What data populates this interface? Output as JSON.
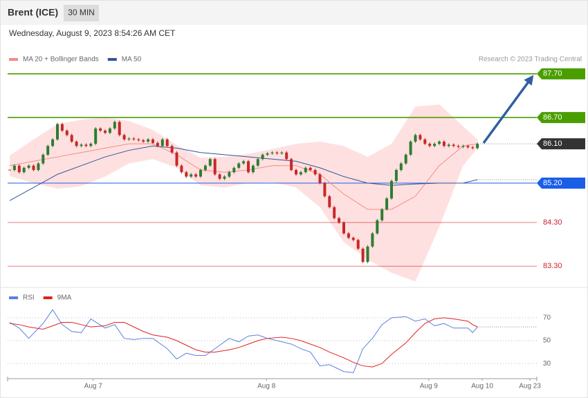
{
  "header": {
    "title": "Brent (ICE)",
    "interval": "30 MIN",
    "timestamp": "Wednesday, August 9, 2023 8:54:26 AM CET"
  },
  "chart_data": [
    {
      "type": "candlestick",
      "source": "Research © 2023 Trading Central",
      "xlim": [
        0,
        110
      ],
      "ylim": [
        82.83,
        88.44
      ],
      "up_color": "#2e7d32",
      "down_color": "#c62828",
      "closes": [
        85.5,
        85.6,
        85.45,
        85.55,
        85.6,
        85.5,
        85.65,
        85.85,
        86.05,
        86.2,
        86.55,
        86.4,
        86.3,
        86.15,
        86.05,
        86.08,
        86.05,
        86.1,
        86.45,
        86.4,
        86.35,
        86.45,
        86.6,
        86.3,
        86.2,
        86.22,
        86.2,
        86.18,
        86.15,
        86.2,
        86.12,
        86.05,
        86.2,
        86.05,
        85.9,
        85.6,
        85.45,
        85.35,
        85.4,
        85.35,
        85.5,
        85.6,
        85.75,
        85.4,
        85.3,
        85.35,
        85.45,
        85.55,
        85.65,
        85.7,
        85.45,
        85.6,
        85.75,
        85.85,
        85.88,
        85.9,
        85.88,
        85.9,
        85.75,
        85.5,
        85.4,
        85.45,
        85.55,
        85.5,
        85.4,
        85.2,
        84.9,
        84.65,
        84.4,
        84.3,
        84.05,
        83.95,
        83.9,
        83.7,
        83.4,
        83.75,
        84.05,
        84.35,
        84.6,
        84.85,
        85.25,
        85.5,
        85.65,
        85.85,
        86.15,
        86.3,
        86.2,
        86.1,
        86.05,
        86.1,
        86.15,
        86.05,
        86.08,
        86.05,
        86.03,
        86.05,
        86.02,
        86.0,
        86.1
      ],
      "series": [
        {
          "name": "MA 20 + Bollinger Bands",
          "color": "#f28b82",
          "band_color": "#ffd6d6",
          "x": [
            0,
            5,
            10,
            15,
            20,
            25,
            30,
            35,
            40,
            45,
            50,
            55,
            60,
            65,
            70,
            75,
            80,
            85,
            90,
            95,
            98
          ],
          "values": [
            85.6,
            85.7,
            85.8,
            85.9,
            86.0,
            86.1,
            86.1,
            85.85,
            85.5,
            85.45,
            85.5,
            85.6,
            85.6,
            85.4,
            84.95,
            84.6,
            84.6,
            84.9,
            85.6,
            86.05,
            86.1
          ],
          "upper": [
            85.83,
            86.2,
            86.55,
            86.65,
            86.7,
            86.62,
            86.42,
            86.07,
            85.78,
            85.8,
            85.87,
            85.98,
            86.1,
            86.15,
            86.05,
            85.8,
            86.1,
            86.95,
            87.0,
            86.5,
            86.2
          ],
          "lower": [
            85.36,
            85.2,
            85.07,
            85.13,
            85.35,
            85.65,
            85.75,
            85.55,
            85.15,
            85.1,
            85.2,
            85.22,
            85.1,
            84.65,
            83.85,
            83.45,
            83.15,
            82.95,
            84.2,
            85.6,
            86.0
          ]
        },
        {
          "name": "MA 50",
          "color": "#2f5597",
          "x": [
            0,
            5,
            10,
            15,
            20,
            25,
            30,
            35,
            40,
            45,
            50,
            55,
            60,
            65,
            70,
            75,
            80,
            85,
            90,
            95,
            98
          ],
          "values": [
            84.8,
            85.1,
            85.4,
            85.6,
            85.8,
            85.95,
            86.05,
            86.0,
            85.9,
            85.85,
            85.8,
            85.75,
            85.7,
            85.55,
            85.35,
            85.2,
            85.15,
            85.18,
            85.2,
            85.2,
            85.28
          ]
        }
      ],
      "levels": [
        {
          "value": 87.7,
          "label": "87.70",
          "color": "#4a9e00",
          "line": "solid",
          "box": true
        },
        {
          "value": 86.7,
          "label": "86.70",
          "color": "#4a9e00",
          "line": "solid",
          "box": true
        },
        {
          "value": 86.1,
          "label": "86.10",
          "color": "#333333",
          "line": "dotted",
          "box": true
        },
        {
          "value": 85.2,
          "label": "85.20",
          "color": "#1a5ee8",
          "line": "solid",
          "box": true
        },
        {
          "value": 84.3,
          "label": "84.30",
          "color": "#d0202a",
          "line": "solid",
          "box": false
        },
        {
          "value": 83.3,
          "label": "83.30",
          "color": "#d0202a",
          "line": "solid",
          "box": false
        }
      ]
    },
    {
      "type": "line",
      "xlim": [
        0,
        110
      ],
      "ylim": [
        18,
        82
      ],
      "yticks": [
        30,
        50,
        70
      ],
      "grid": true,
      "xticks": [
        {
          "value": 17.5,
          "label": "Aug 7"
        },
        {
          "value": 53.8,
          "label": "Aug 8"
        },
        {
          "value": 87.8,
          "label": "Aug 9"
        },
        {
          "value": 99,
          "label": "Aug 10"
        },
        {
          "value": 109,
          "label": "Aug 23"
        }
      ],
      "series": [
        {
          "name": "RSI",
          "color": "#5b7fe0",
          "x": [
            0,
            2,
            4,
            7,
            9,
            11,
            13,
            15,
            17,
            20,
            22,
            24,
            26,
            28,
            30,
            33,
            35,
            37,
            39,
            41,
            43,
            46,
            48,
            50,
            52,
            54,
            57,
            59,
            61,
            63,
            65,
            67,
            70,
            72,
            74,
            76,
            78,
            80,
            83,
            85,
            87,
            89,
            91,
            93,
            96,
            97,
            98
          ],
          "values": [
            66,
            61,
            52,
            65,
            77,
            64,
            58,
            57,
            69,
            61,
            64,
            52,
            51,
            52,
            52,
            43,
            34,
            39,
            37,
            37,
            43,
            52,
            49,
            54,
            55,
            52,
            49,
            47,
            43,
            40,
            28,
            29,
            23,
            22,
            43,
            52,
            64,
            70,
            71,
            67,
            69,
            63,
            65,
            61,
            61,
            57,
            62
          ]
        },
        {
          "name": "9MA",
          "color": "#e02020",
          "x": [
            0,
            2,
            4,
            7,
            9,
            11,
            13,
            15,
            17,
            20,
            22,
            24,
            26,
            28,
            30,
            33,
            35,
            37,
            39,
            41,
            43,
            46,
            48,
            50,
            52,
            54,
            57,
            59,
            61,
            63,
            65,
            67,
            70,
            72,
            74,
            76,
            78,
            80,
            83,
            85,
            87,
            89,
            91,
            93,
            96,
            97,
            98
          ],
          "values": [
            65,
            64,
            62,
            60,
            63,
            66,
            66,
            64,
            62,
            63,
            66,
            66,
            62,
            58,
            55,
            53,
            50,
            46,
            42,
            40,
            40,
            42,
            44,
            47,
            50,
            52,
            53,
            52,
            50,
            47,
            44,
            40,
            35,
            31,
            28,
            27,
            30,
            38,
            48,
            57,
            65,
            69,
            70,
            69,
            67,
            64,
            62
          ]
        }
      ]
    }
  ]
}
